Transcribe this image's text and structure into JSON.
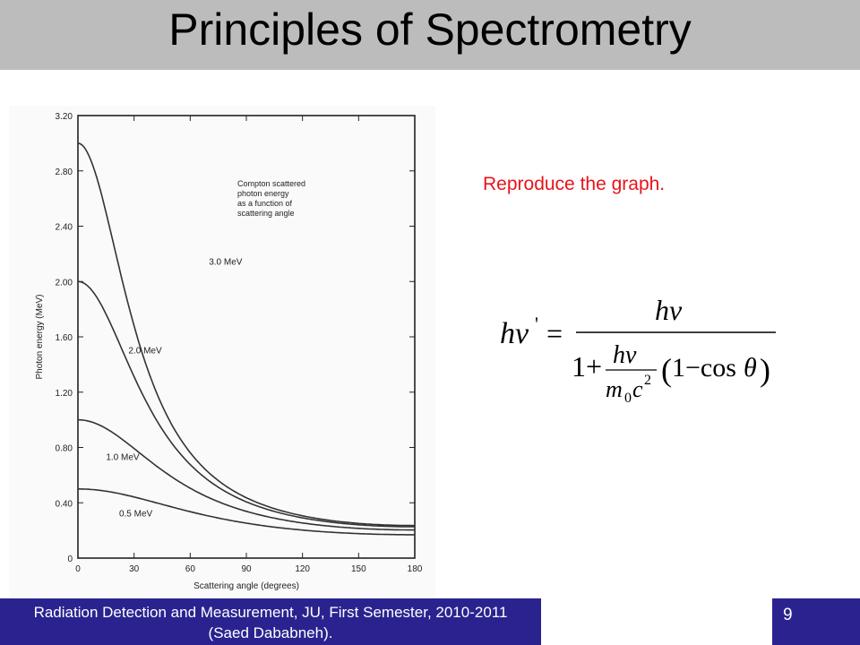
{
  "slide": {
    "title": "Principles of Spectrometry",
    "note": "Reproduce the graph.",
    "footer": {
      "line1": "Radiation Detection and Measurement, JU, First Semester, 2010-2011",
      "line2": "(Saed Dababneh).",
      "page": "9"
    },
    "colors": {
      "title_bar": "#bcbcbc",
      "footer": "#2a238f",
      "note": "#e8141a"
    }
  },
  "chart_data": {
    "type": "line",
    "title": "",
    "annotation": [
      "Compton scattered",
      "photon energy",
      "as a function of",
      "scattering angle"
    ],
    "xlabel": "Scattering angle (degrees)",
    "ylabel": "Photon energy (MeV)",
    "xlim": [
      0,
      180
    ],
    "ylim": [
      0,
      3.2
    ],
    "x_ticks": [
      "0",
      "30",
      "60",
      "90",
      "120",
      "150",
      "180"
    ],
    "y_ticks": [
      "0",
      "0.40",
      "0.80",
      "1.20",
      "1.60",
      "2.00",
      "2.40",
      "2.80",
      "3.20"
    ],
    "grid": false,
    "series": [
      {
        "name": "3.0 MeV",
        "initial_energy": 3.0
      },
      {
        "name": "2.0 MeV",
        "initial_energy": 2.0
      },
      {
        "name": "1.0 MeV",
        "initial_energy": 1.0
      },
      {
        "name": "0.5 MeV",
        "initial_energy": 0.5
      }
    ]
  }
}
